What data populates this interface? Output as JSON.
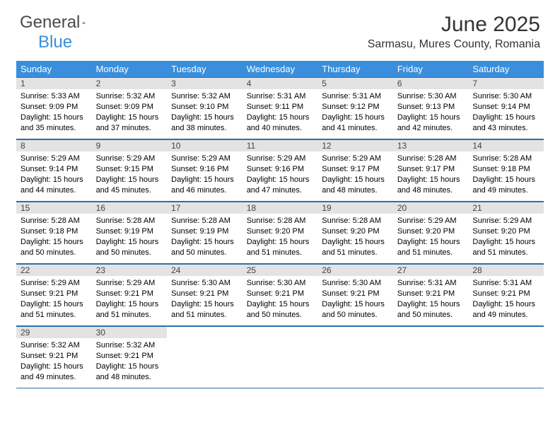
{
  "brand": {
    "text1": "General",
    "text2": "Blue"
  },
  "title": "June 2025",
  "location": "Sarmasu, Mures County, Romania",
  "colors": {
    "header_bg": "#3a8edb",
    "header_text": "#ffffff",
    "border": "#2f6fa8",
    "daynum_bg": "#e3e3e3",
    "body_text": "#000000"
  },
  "weekdays": [
    "Sunday",
    "Monday",
    "Tuesday",
    "Wednesday",
    "Thursday",
    "Friday",
    "Saturday"
  ],
  "days": [
    {
      "n": "1",
      "sr": "5:33 AM",
      "ss": "9:09 PM",
      "dl": "15 hours and 35 minutes."
    },
    {
      "n": "2",
      "sr": "5:32 AM",
      "ss": "9:09 PM",
      "dl": "15 hours and 37 minutes."
    },
    {
      "n": "3",
      "sr": "5:32 AM",
      "ss": "9:10 PM",
      "dl": "15 hours and 38 minutes."
    },
    {
      "n": "4",
      "sr": "5:31 AM",
      "ss": "9:11 PM",
      "dl": "15 hours and 40 minutes."
    },
    {
      "n": "5",
      "sr": "5:31 AM",
      "ss": "9:12 PM",
      "dl": "15 hours and 41 minutes."
    },
    {
      "n": "6",
      "sr": "5:30 AM",
      "ss": "9:13 PM",
      "dl": "15 hours and 42 minutes."
    },
    {
      "n": "7",
      "sr": "5:30 AM",
      "ss": "9:14 PM",
      "dl": "15 hours and 43 minutes."
    },
    {
      "n": "8",
      "sr": "5:29 AM",
      "ss": "9:14 PM",
      "dl": "15 hours and 44 minutes."
    },
    {
      "n": "9",
      "sr": "5:29 AM",
      "ss": "9:15 PM",
      "dl": "15 hours and 45 minutes."
    },
    {
      "n": "10",
      "sr": "5:29 AM",
      "ss": "9:16 PM",
      "dl": "15 hours and 46 minutes."
    },
    {
      "n": "11",
      "sr": "5:29 AM",
      "ss": "9:16 PM",
      "dl": "15 hours and 47 minutes."
    },
    {
      "n": "12",
      "sr": "5:29 AM",
      "ss": "9:17 PM",
      "dl": "15 hours and 48 minutes."
    },
    {
      "n": "13",
      "sr": "5:28 AM",
      "ss": "9:17 PM",
      "dl": "15 hours and 48 minutes."
    },
    {
      "n": "14",
      "sr": "5:28 AM",
      "ss": "9:18 PM",
      "dl": "15 hours and 49 minutes."
    },
    {
      "n": "15",
      "sr": "5:28 AM",
      "ss": "9:18 PM",
      "dl": "15 hours and 50 minutes."
    },
    {
      "n": "16",
      "sr": "5:28 AM",
      "ss": "9:19 PM",
      "dl": "15 hours and 50 minutes."
    },
    {
      "n": "17",
      "sr": "5:28 AM",
      "ss": "9:19 PM",
      "dl": "15 hours and 50 minutes."
    },
    {
      "n": "18",
      "sr": "5:28 AM",
      "ss": "9:20 PM",
      "dl": "15 hours and 51 minutes."
    },
    {
      "n": "19",
      "sr": "5:28 AM",
      "ss": "9:20 PM",
      "dl": "15 hours and 51 minutes."
    },
    {
      "n": "20",
      "sr": "5:29 AM",
      "ss": "9:20 PM",
      "dl": "15 hours and 51 minutes."
    },
    {
      "n": "21",
      "sr": "5:29 AM",
      "ss": "9:20 PM",
      "dl": "15 hours and 51 minutes."
    },
    {
      "n": "22",
      "sr": "5:29 AM",
      "ss": "9:21 PM",
      "dl": "15 hours and 51 minutes."
    },
    {
      "n": "23",
      "sr": "5:29 AM",
      "ss": "9:21 PM",
      "dl": "15 hours and 51 minutes."
    },
    {
      "n": "24",
      "sr": "5:30 AM",
      "ss": "9:21 PM",
      "dl": "15 hours and 51 minutes."
    },
    {
      "n": "25",
      "sr": "5:30 AM",
      "ss": "9:21 PM",
      "dl": "15 hours and 50 minutes."
    },
    {
      "n": "26",
      "sr": "5:30 AM",
      "ss": "9:21 PM",
      "dl": "15 hours and 50 minutes."
    },
    {
      "n": "27",
      "sr": "5:31 AM",
      "ss": "9:21 PM",
      "dl": "15 hours and 50 minutes."
    },
    {
      "n": "28",
      "sr": "5:31 AM",
      "ss": "9:21 PM",
      "dl": "15 hours and 49 minutes."
    },
    {
      "n": "29",
      "sr": "5:32 AM",
      "ss": "9:21 PM",
      "dl": "15 hours and 49 minutes."
    },
    {
      "n": "30",
      "sr": "5:32 AM",
      "ss": "9:21 PM",
      "dl": "15 hours and 48 minutes."
    }
  ],
  "labels": {
    "sunrise": "Sunrise:",
    "sunset": "Sunset:",
    "daylight": "Daylight:"
  }
}
